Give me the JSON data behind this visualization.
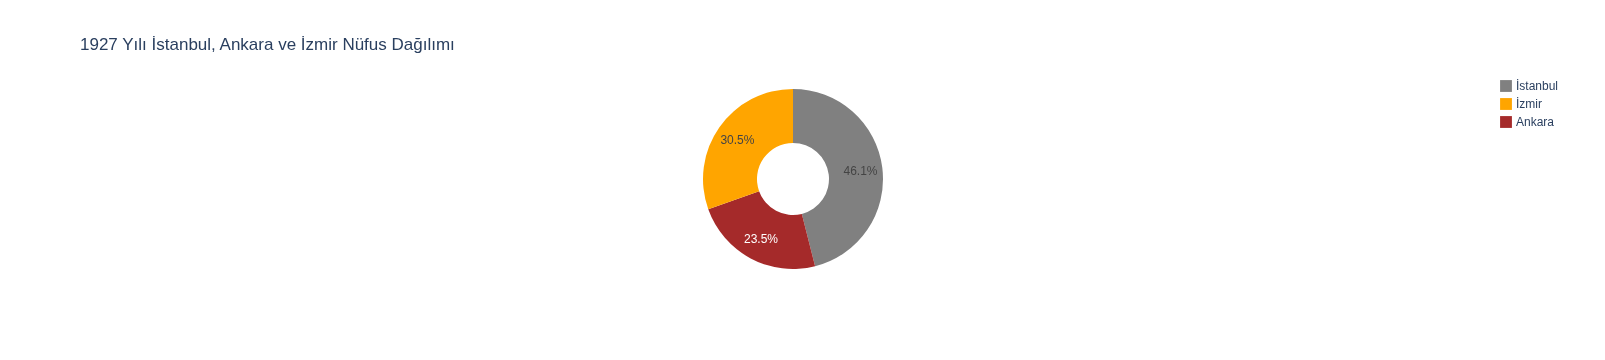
{
  "chart_data": {
    "type": "donut",
    "title": "1927 Yılı İstanbul, Ankara ve İzmir Nüfus Dağılımı",
    "categories": [
      "İstanbul",
      "Ankara",
      "İzmir"
    ],
    "values": [
      46.1,
      23.5,
      30.5
    ],
    "colors": [
      "#808080",
      "#a52a2a",
      "#ffa500"
    ],
    "value_labels": [
      "46.1%",
      "23.5%",
      "30.5%"
    ],
    "legend": "top right"
  }
}
